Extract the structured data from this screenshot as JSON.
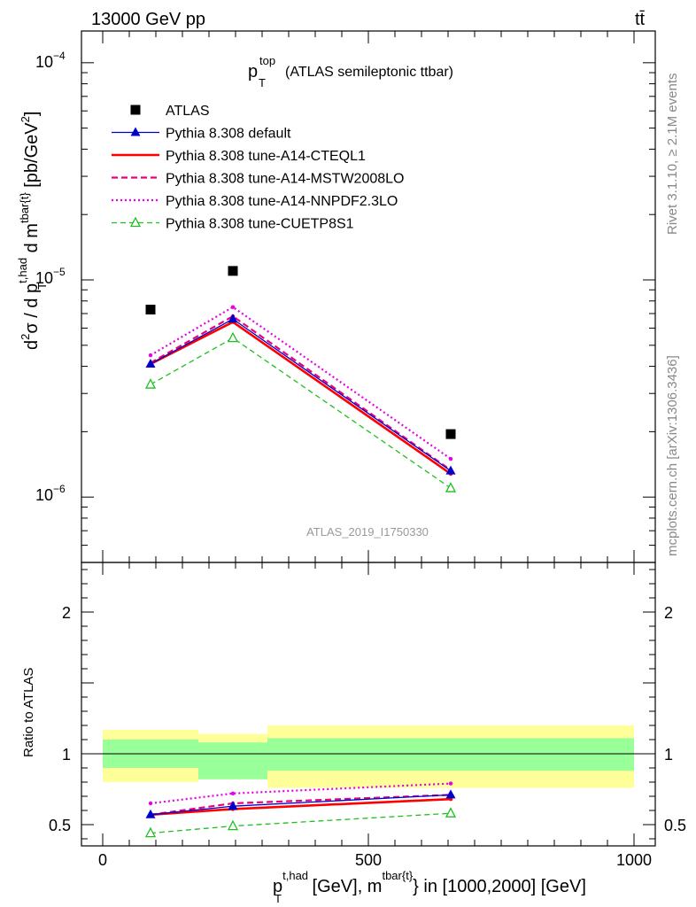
{
  "header": {
    "energy_label": "13000 GeV pp",
    "process_label": "tt̄"
  },
  "title": {
    "main": "p",
    "sup": "top",
    "sub": "T",
    "rest": "(ATLAS semileptonic ttbar)"
  },
  "side_labels": {
    "rivet": "Rivet 3.1.10, ≥ 2.1M events",
    "mcplots": "mcplots.cern.ch [arXiv:1306.3436]"
  },
  "watermark": "ATLAS_2019_I1750330",
  "ylabel_top": {
    "prefix": "d",
    "prefix_sup": "2",
    "sigma": "σ / d p",
    "p_sup": "t,had",
    "p_sub": "T",
    "mid": " d m",
    "m_sup": "tbar{t}",
    "unit": " [pb/GeV",
    "unit_sup": "2",
    "unit_end": "]"
  },
  "ylabel_bottom": "Ratio to ATLAS",
  "xlabel": {
    "p": "p",
    "p_sup": "t,had",
    "p_sub": "T",
    "mid": " [GeV], m",
    "m_sup": "tbar{t}",
    "rest": "} in [1000,2000] [GeV]"
  },
  "colors": {
    "atlas": "#000000",
    "default": "#0000cc",
    "cteql1": "#ff0000",
    "mstw": "#e6007e",
    "nnpdf": "#e600e6",
    "cuetp": "#1fbf1f",
    "band_inner": "#99ff99",
    "band_outer": "#ffff99"
  },
  "chart_data": [
    {
      "type": "line",
      "panel": "main",
      "ylog": true,
      "ylim": [
        5e-07,
        0.00014
      ],
      "xlim": [
        -40,
        1040
      ],
      "ytick_labels": [
        "10⁻⁶",
        "10⁻⁵",
        "10⁻⁴"
      ],
      "yticks": [
        1e-06,
        1e-05,
        0.0001
      ],
      "series": [
        {
          "name": "ATLAS",
          "style": "marker",
          "x": [
            90,
            245,
            655
          ],
          "values": [
            7.3e-06,
            1.1e-05,
            1.95e-06
          ]
        },
        {
          "name": "Pythia 8.308 default",
          "style": "default",
          "x": [
            90,
            245,
            655
          ],
          "values": [
            4.1e-06,
            6.6e-06,
            1.32e-06
          ]
        },
        {
          "name": "Pythia 8.308 tune-A14-CTEQL1",
          "style": "cteql1",
          "x": [
            90,
            245,
            655
          ],
          "values": [
            4.1e-06,
            6.4e-06,
            1.28e-06
          ]
        },
        {
          "name": "Pythia 8.308 tune-A14-MSTW2008LO",
          "style": "mstw",
          "x": [
            90,
            245,
            655
          ],
          "values": [
            4.15e-06,
            6.8e-06,
            1.33e-06
          ]
        },
        {
          "name": "Pythia 8.308 tune-A14-NNPDF2.3LO",
          "style": "nnpdf",
          "x": [
            90,
            245,
            655
          ],
          "values": [
            4.5e-06,
            7.5e-06,
            1.5e-06
          ]
        },
        {
          "name": "Pythia 8.308 tune-CUETP8S1",
          "style": "cuetp",
          "x": [
            90,
            245,
            655
          ],
          "values": [
            3.3e-06,
            5.4e-06,
            1.1e-06
          ]
        }
      ]
    },
    {
      "type": "line",
      "panel": "ratio",
      "ylim": [
        0.35,
        2.35
      ],
      "xlim": [
        -40,
        1040
      ],
      "xticks": [
        0,
        500,
        1000
      ],
      "xtick_labels": [
        "0",
        "500",
        "1000"
      ],
      "yticks": [
        0.5,
        1,
        2
      ],
      "ytick_labels": [
        "0.5",
        "1",
        "2"
      ],
      "bands": [
        {
          "x0": 0,
          "x1": 180,
          "inner": [
            0.9,
            1.1
          ],
          "outer": [
            0.8,
            1.17
          ]
        },
        {
          "x0": 180,
          "x1": 310,
          "inner": [
            0.82,
            1.08
          ],
          "outer": [
            0.82,
            1.14
          ]
        },
        {
          "x0": 310,
          "x1": 1000,
          "inner": [
            0.88,
            1.11
          ],
          "outer": [
            0.76,
            1.2
          ]
        }
      ],
      "series": [
        {
          "name": "Pythia 8.308 default",
          "style": "default",
          "x": [
            90,
            245,
            655
          ],
          "values": [
            0.57,
            0.63,
            0.71
          ]
        },
        {
          "name": "Pythia 8.308 tune-A14-CTEQL1",
          "style": "cteql1",
          "x": [
            90,
            245,
            655
          ],
          "values": [
            0.57,
            0.61,
            0.68
          ]
        },
        {
          "name": "Pythia 8.308 tune-A14-MSTW2008LO",
          "style": "mstw",
          "x": [
            90,
            245,
            655
          ],
          "values": [
            0.57,
            0.65,
            0.71
          ]
        },
        {
          "name": "Pythia 8.308 tune-A14-NNPDF2.3LO",
          "style": "nnpdf",
          "x": [
            90,
            245,
            655
          ],
          "values": [
            0.65,
            0.72,
            0.79
          ]
        },
        {
          "name": "Pythia 8.308 tune-CUETP8S1",
          "style": "cuetp",
          "x": [
            90,
            245,
            655
          ],
          "values": [
            0.44,
            0.49,
            0.58
          ]
        }
      ]
    }
  ]
}
